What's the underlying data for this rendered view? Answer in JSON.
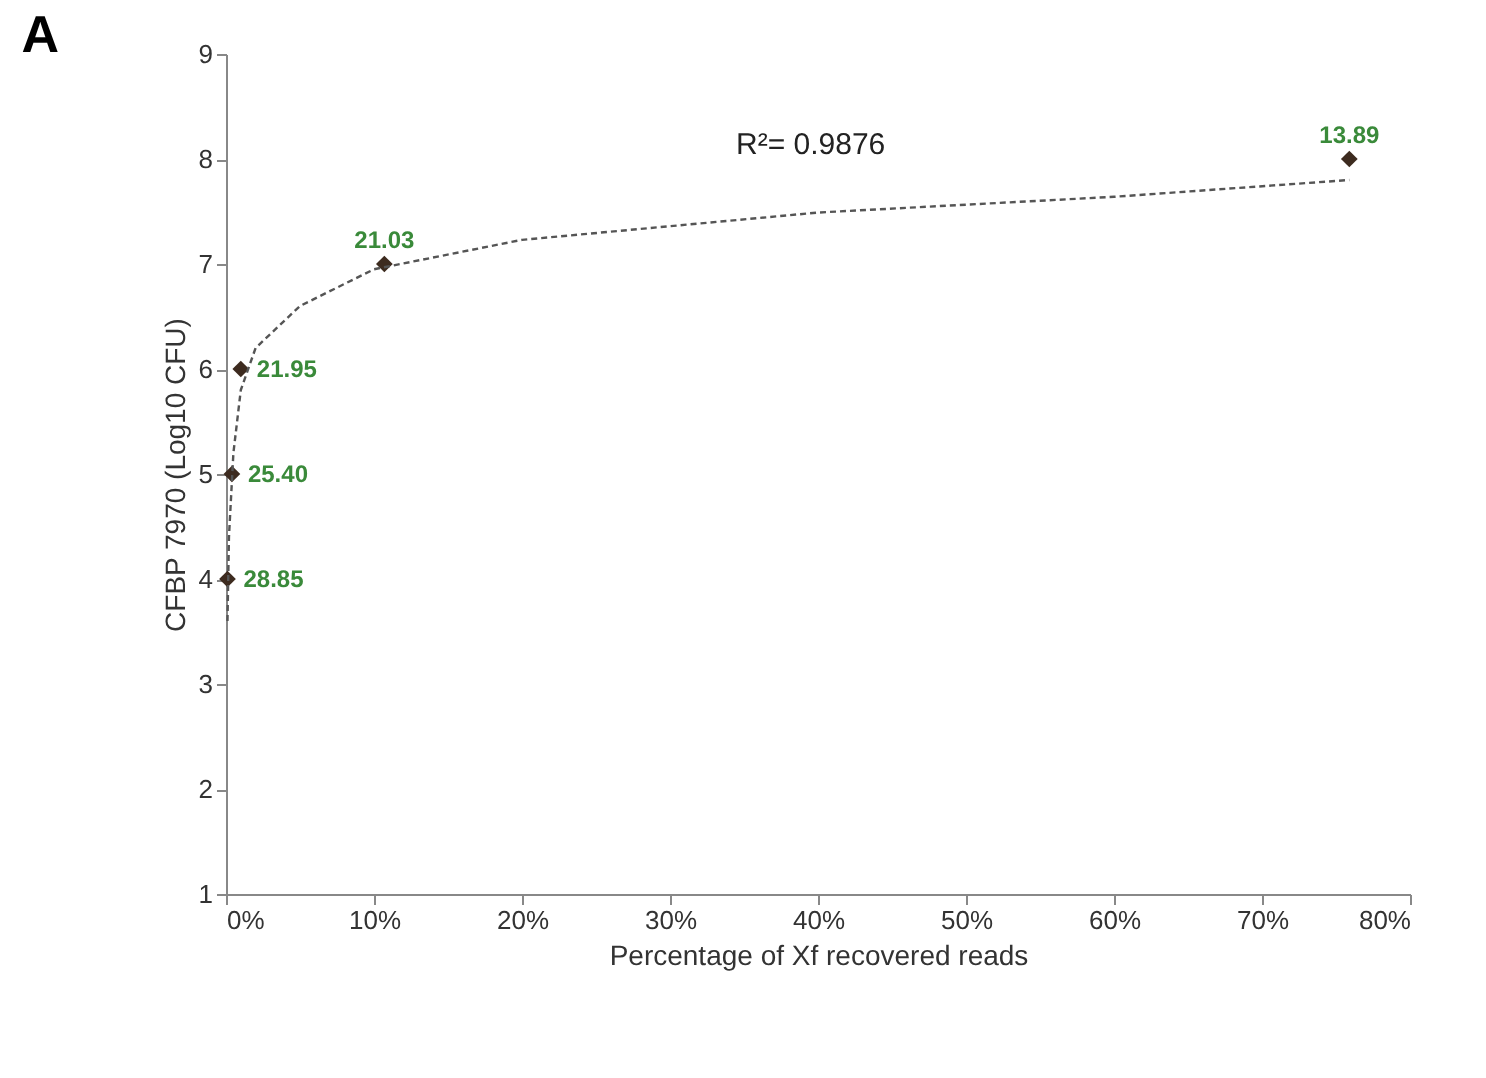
{
  "chart_data": {
    "type": "scatter",
    "title": "A",
    "xlabel": "Percentage of Xf recovered reads",
    "ylabel": "CFBP 7970 (Log10 CFU)",
    "xlim": [
      0,
      80
    ],
    "xticks": [
      {
        "value": 0,
        "label": "0%"
      },
      {
        "value": 10,
        "label": "10%"
      },
      {
        "value": 20,
        "label": "20%"
      },
      {
        "value": 30,
        "label": "30%"
      },
      {
        "value": 40,
        "label": "40%"
      },
      {
        "value": 50,
        "label": "50%"
      },
      {
        "value": 60,
        "label": "60%"
      },
      {
        "value": 70,
        "label": "70%"
      },
      {
        "value": 80,
        "label": "80%"
      }
    ],
    "ylim": [
      1,
      9
    ],
    "yticks": [
      1,
      2,
      3,
      4,
      5,
      6,
      7,
      8,
      9
    ],
    "grid": false,
    "series": [
      {
        "color": "#3d2b1f",
        "marker": "diamond",
        "x": [
          0.1,
          0.4,
          1.0,
          10.7,
          75.9
        ],
        "values": [
          4,
          5,
          6,
          7,
          8
        ]
      },
      {
        "type": "line",
        "color": "#555555",
        "line_style": "dashed",
        "marker": "none",
        "x": [
          0.1,
          0.2,
          0.5,
          1,
          2,
          5,
          10,
          20,
          40,
          60,
          75.9
        ],
        "values": [
          3.6,
          4.4,
          5.2,
          5.8,
          6.2,
          6.6,
          6.95,
          7.23,
          7.49,
          7.64,
          7.8
        ]
      }
    ],
    "annotations": [
      {
        "text": "28.85",
        "x": 0.1,
        "y": 4
      },
      {
        "text": "25.40",
        "x": 0.4,
        "y": 5
      },
      {
        "text": "21.95",
        "x": 1.0,
        "y": 6
      },
      {
        "text": "21.03",
        "x": 10.7,
        "y": 7
      },
      {
        "text": "13.89",
        "x": 75.9,
        "y": 8
      },
      "R²= 0.9876"
    ]
  }
}
